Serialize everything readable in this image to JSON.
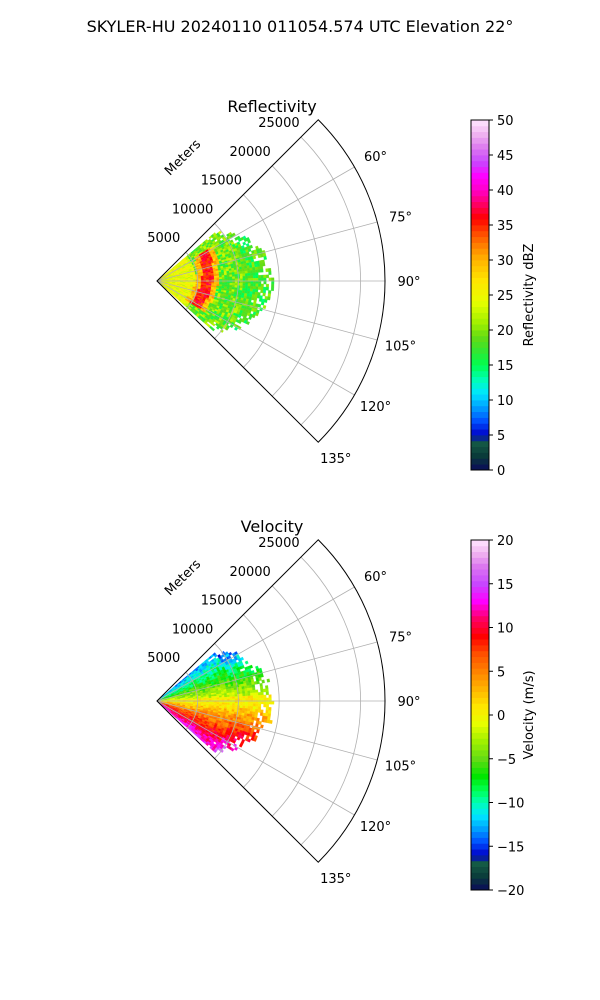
{
  "suptitle": "SKYLER-HU  20240110  011054.574 UTC Elevation 22°",
  "chart_data": [
    {
      "type": "heatmap",
      "subtype": "polar-sector",
      "title": "Reflectivity",
      "range_label": "Meters",
      "range_ticks": [
        5000,
        10000,
        15000,
        20000,
        25000
      ],
      "range_tick_labels": [
        "5000",
        "10000",
        "15000",
        "20000",
        "25000"
      ],
      "range_max_m": 28000,
      "azimuth_range_deg": [
        45,
        135
      ],
      "azimuth_ticks": [
        60,
        75,
        90,
        105,
        120,
        135
      ],
      "azimuth_tick_labels": [
        "60°",
        "75°",
        "90°",
        "105°",
        "120°",
        "135°"
      ],
      "grid": true,
      "data_extent": {
        "min_az_deg": 50,
        "max_az_deg": 130,
        "max_range_m": 14000
      },
      "echo_description": "Reflectivity mostly 15–28 dBZ, with a 35–38 dBZ arc near 6000 m range",
      "colorbar": {
        "label": "Reflectivity dBZ",
        "min": 0,
        "max": 50,
        "ticks": [
          0,
          5,
          10,
          15,
          20,
          25,
          30,
          35,
          40,
          45,
          50
        ],
        "tick_labels": [
          "0",
          "5",
          "10",
          "15",
          "20",
          "25",
          "30",
          "35",
          "40",
          "45",
          "50"
        ],
        "stops": [
          {
            "v": 0,
            "color": "#0a0a5a"
          },
          {
            "v": 2,
            "color": "#0a3a3a"
          },
          {
            "v": 4,
            "color": "#145a45"
          },
          {
            "v": 5,
            "color": "#0000c8"
          },
          {
            "v": 7,
            "color": "#0050ff"
          },
          {
            "v": 9,
            "color": "#00a0ff"
          },
          {
            "v": 11,
            "color": "#00e6ff"
          },
          {
            "v": 13,
            "color": "#00ffb4"
          },
          {
            "v": 15,
            "color": "#00ff50"
          },
          {
            "v": 17,
            "color": "#32e632"
          },
          {
            "v": 19,
            "color": "#64dc14"
          },
          {
            "v": 21,
            "color": "#a0f000"
          },
          {
            "v": 24,
            "color": "#e6ff00"
          },
          {
            "v": 27,
            "color": "#ffe600"
          },
          {
            "v": 30,
            "color": "#ffb400"
          },
          {
            "v": 32,
            "color": "#ff8200"
          },
          {
            "v": 34,
            "color": "#ff4600"
          },
          {
            "v": 36,
            "color": "#ff0000"
          },
          {
            "v": 38,
            "color": "#ff0064"
          },
          {
            "v": 40,
            "color": "#ff00c8"
          },
          {
            "v": 42,
            "color": "#ff00ff"
          },
          {
            "v": 44,
            "color": "#c846ff"
          },
          {
            "v": 46,
            "color": "#dc78f0"
          },
          {
            "v": 48,
            "color": "#f0b4f0"
          },
          {
            "v": 50,
            "color": "#ffe6ff"
          }
        ]
      }
    },
    {
      "type": "heatmap",
      "subtype": "polar-sector",
      "title": "Velocity",
      "range_label": "Meters",
      "range_ticks": [
        5000,
        10000,
        15000,
        20000,
        25000
      ],
      "range_tick_labels": [
        "5000",
        "10000",
        "15000",
        "20000",
        "25000"
      ],
      "range_max_m": 28000,
      "azimuth_range_deg": [
        45,
        135
      ],
      "azimuth_ticks": [
        60,
        75,
        90,
        105,
        120,
        135
      ],
      "azimuth_tick_labels": [
        "60°",
        "75°",
        "90°",
        "105°",
        "120°",
        "135°"
      ],
      "grid": true,
      "data_extent": {
        "min_az_deg": 50,
        "max_az_deg": 130,
        "max_range_m": 14000
      },
      "echo_description": "Velocity from about -10 m/s at low azimuths to +15 m/s at high azimuths, near 0 m/s along 90°",
      "colorbar": {
        "label": "Velocity (m/s)",
        "min": -20,
        "max": 20,
        "ticks": [
          -20,
          -15,
          -10,
          -5,
          0,
          5,
          10,
          15,
          20
        ],
        "tick_labels": [
          "−20",
          "−15",
          "−10",
          "−5",
          "0",
          "5",
          "10",
          "15",
          "20"
        ],
        "stops": [
          {
            "v": -20,
            "color": "#0a0a5a"
          },
          {
            "v": -18.5,
            "color": "#0a3a3a"
          },
          {
            "v": -17,
            "color": "#145a45"
          },
          {
            "v": -16,
            "color": "#0000c8"
          },
          {
            "v": -14.5,
            "color": "#0050ff"
          },
          {
            "v": -13,
            "color": "#00a0ff"
          },
          {
            "v": -11.5,
            "color": "#00e6ff"
          },
          {
            "v": -10,
            "color": "#00ffb4"
          },
          {
            "v": -8.5,
            "color": "#00ff50"
          },
          {
            "v": -7,
            "color": "#00e600"
          },
          {
            "v": -5,
            "color": "#64dc14"
          },
          {
            "v": -3,
            "color": "#a0f000"
          },
          {
            "v": -1,
            "color": "#e6ff00"
          },
          {
            "v": 1,
            "color": "#ffe600"
          },
          {
            "v": 3,
            "color": "#ffb400"
          },
          {
            "v": 5,
            "color": "#ff8200"
          },
          {
            "v": 7,
            "color": "#ff5000"
          },
          {
            "v": 9,
            "color": "#ff0000"
          },
          {
            "v": 11,
            "color": "#ff0064"
          },
          {
            "v": 13,
            "color": "#ff00ff"
          },
          {
            "v": 15,
            "color": "#c846ff"
          },
          {
            "v": 17,
            "color": "#dc78f0"
          },
          {
            "v": 18.5,
            "color": "#f0b4f0"
          },
          {
            "v": 20,
            "color": "#ffe6ff"
          }
        ]
      }
    }
  ]
}
